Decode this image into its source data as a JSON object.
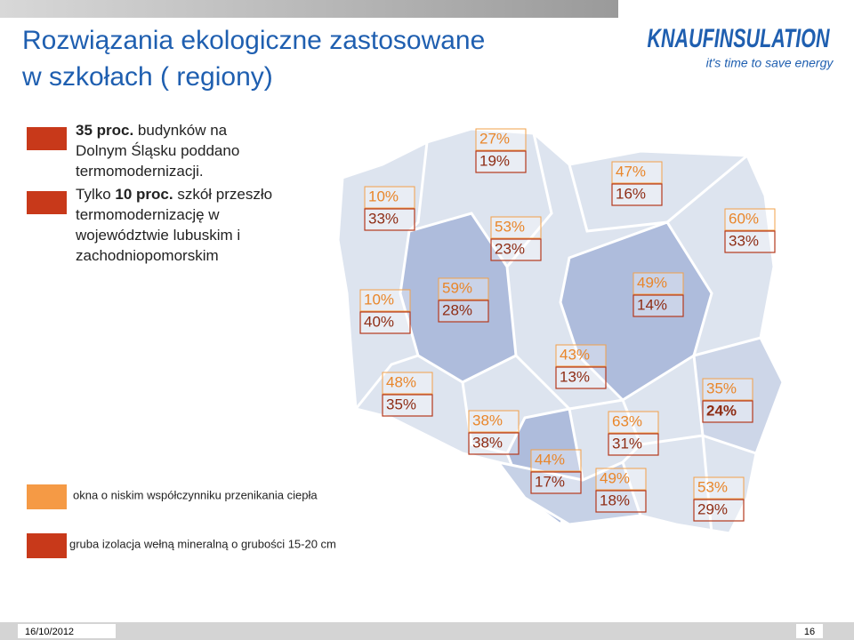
{
  "header": {
    "title_lines": [
      "Rozwiązania ekologiczne zastosowane",
      "w szkołach ( regiony)"
    ]
  },
  "logo": {
    "brand": "KNAUFINSULATION",
    "tagline": "it's time to save energy"
  },
  "bullets": [
    {
      "lines": [
        [
          {
            "text": "35 proc.",
            "bold": true
          },
          {
            "text": " budynków na"
          }
        ],
        [
          {
            "text": "Dolnym Śląsku poddano"
          }
        ],
        [
          {
            "text": "termomodernizacji."
          }
        ]
      ]
    },
    {
      "lines": [
        [
          {
            "text": "Tylko "
          },
          {
            "text": "10 proc.",
            "bold": true
          },
          {
            "text": " szkół przeszło"
          }
        ],
        [
          {
            "text": "termomodernizację w"
          }
        ],
        [
          {
            "text": "województwie lubuskim i"
          }
        ],
        [
          {
            "text": "zachodniopomorskim"
          }
        ]
      ]
    }
  ],
  "regions": [
    {
      "top": "10%",
      "bottom": "33%"
    },
    {
      "top": "27%",
      "bottom": "19%"
    },
    {
      "top": "47%",
      "bottom": "16%"
    },
    {
      "top": "53%",
      "bottom": "23%"
    },
    {
      "top": "60%",
      "bottom": "33%"
    },
    {
      "top": "10%",
      "bottom": "40%"
    },
    {
      "top": "59%",
      "bottom": "28%"
    },
    {
      "top": "49%",
      "bottom": "14%"
    },
    {
      "top": "43%",
      "bottom": "13%"
    },
    {
      "top": "48%",
      "bottom": "35%"
    },
    {
      "top": "35%",
      "bottom": "24%",
      "bold": true
    },
    {
      "top": "38%",
      "bottom": "38%"
    },
    {
      "top": "63%",
      "bottom": "31%"
    },
    {
      "top": "44%",
      "bottom": "17%"
    },
    {
      "top": "49%",
      "bottom": "18%"
    },
    {
      "top": "53%",
      "bottom": "29%"
    }
  ],
  "legend": [
    {
      "label": "okna o niskim współczynniku przenikania ciepła",
      "color": "#f59a45"
    },
    {
      "label": "gruba izolacja wełną mineralną o grubości 15-20 cm",
      "color": "#c8391a"
    }
  ],
  "footer": {
    "date": "16/10/2012",
    "page": "16"
  }
}
